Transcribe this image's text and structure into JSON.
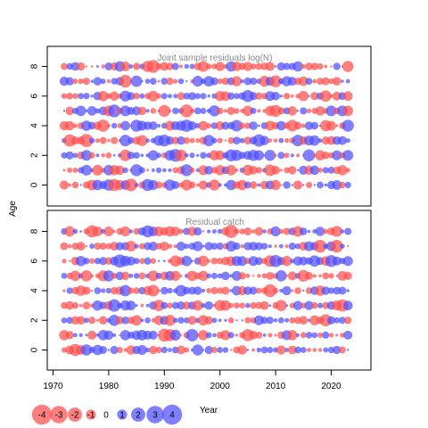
{
  "chart_data": [
    {
      "type": "scatter",
      "title": "Joint sample residuals log(N)",
      "ylabel": "Age",
      "x_range": [
        1972,
        2023
      ],
      "y_ticks": [
        0,
        2,
        4,
        6,
        8
      ],
      "ylim": [
        -1,
        9
      ],
      "rows": [
        0,
        1,
        2,
        3,
        4,
        5,
        6,
        7,
        8
      ],
      "seed": 17
    },
    {
      "type": "scatter",
      "title": "Residual catch",
      "ylabel": "Age",
      "xlabel": "Year",
      "x_range": [
        1972,
        2023
      ],
      "x_ticks": [
        1970,
        1980,
        1990,
        2000,
        2010,
        2020
      ],
      "y_ticks": [
        0,
        2,
        4,
        6,
        8
      ],
      "ylim": [
        -1,
        9
      ],
      "rows": [
        0,
        1,
        2,
        3,
        4,
        5,
        6,
        7,
        8
      ],
      "seed": 53
    }
  ],
  "legend": {
    "values": [
      -4,
      -3,
      -2,
      -1,
      0,
      1,
      2,
      3,
      4
    ],
    "labels": [
      "-4",
      "-3",
      "-2",
      "-1",
      "0",
      "1",
      "2",
      "3",
      "4"
    ]
  },
  "colors": {
    "negative": "#ff4d4d",
    "positive": "#4d4dff"
  },
  "axis_label_age": "Age",
  "axis_label_year": "Year"
}
